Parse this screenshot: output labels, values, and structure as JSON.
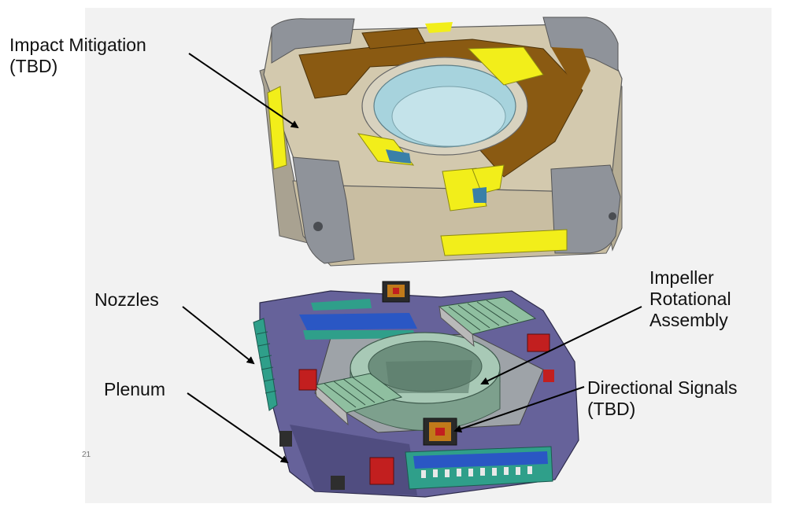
{
  "labels": {
    "impact_line1": "Impact Mitigation",
    "impact_line2": "(TBD)",
    "nozzles": "Nozzles",
    "plenum": "Plenum",
    "impeller_line1": "Impeller",
    "impeller_line2": "Rotational",
    "impeller_line3": "Assembly",
    "directional_line1": "Directional Signals",
    "directional_line2": "(TBD)"
  },
  "fragment_text": "21",
  "colors": {
    "background_panel": "#f2f2f2",
    "shell_tan": "#c9bea2",
    "shell_gray": "#8f939a",
    "brown_pads": "#8a5a12",
    "yellow_cutouts": "#f2ee1a",
    "bowl_blue": "#a7d3dd",
    "frame_purple": "#66629a",
    "impeller_green": "#8fb3a0",
    "stripe_blue": "#2a57c4",
    "stripe_teal": "#2f9f8a",
    "red_component": "#c21f1f",
    "arrow": "#000000"
  }
}
